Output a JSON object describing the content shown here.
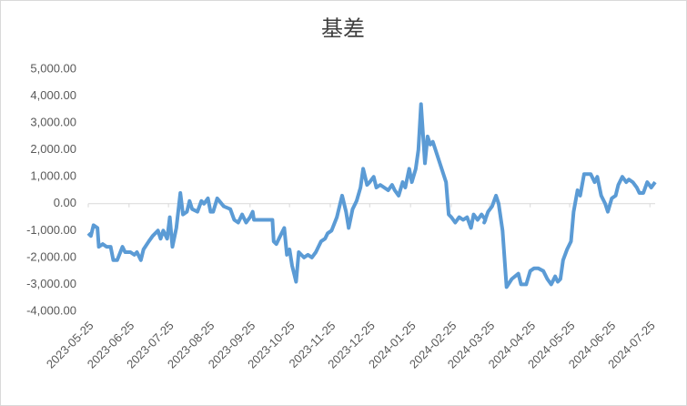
{
  "chart_data": {
    "type": "line",
    "title": "基差",
    "x": [
      "2023-05-25",
      "2023-05-27",
      "2023-05-29",
      "2023-06-01",
      "2023-06-02",
      "2023-06-05",
      "2023-06-08",
      "2023-06-11",
      "2023-06-13",
      "2023-06-16",
      "2023-06-20",
      "2023-06-22",
      "2023-06-26",
      "2023-06-29",
      "2023-07-01",
      "2023-07-04",
      "2023-07-06",
      "2023-07-10",
      "2023-07-13",
      "2023-07-17",
      "2023-07-19",
      "2023-07-21",
      "2023-07-24",
      "2023-07-26",
      "2023-07-28",
      "2023-07-31",
      "2023-08-03",
      "2023-08-05",
      "2023-08-08",
      "2023-08-10",
      "2023-08-12",
      "2023-08-16",
      "2023-08-19",
      "2023-08-21",
      "2023-08-24",
      "2023-08-26",
      "2023-08-28",
      "2023-08-31",
      "2023-09-05",
      "2023-09-10",
      "2023-09-13",
      "2023-09-16",
      "2023-09-19",
      "2023-09-22",
      "2023-09-25",
      "2023-09-27",
      "2023-09-28",
      "2023-10-03",
      "2023-10-12",
      "2023-10-13",
      "2023-10-15",
      "2023-10-18",
      "2023-10-21",
      "2023-10-23",
      "2023-10-25",
      "2023-10-27",
      "2023-10-30",
      "2023-11-01",
      "2023-11-05",
      "2023-11-08",
      "2023-11-11",
      "2023-11-14",
      "2023-11-18",
      "2023-11-21",
      "2023-11-23",
      "2023-11-26",
      "2023-11-30",
      "2023-12-02",
      "2023-12-04",
      "2023-12-07",
      "2023-12-09",
      "2023-12-12",
      "2023-12-15",
      "2023-12-18",
      "2023-12-20",
      "2023-12-23",
      "2023-12-25",
      "2023-12-28",
      "2023-12-30",
      "2024-01-02",
      "2024-01-05",
      "2024-01-08",
      "2024-01-11",
      "2024-01-13",
      "2024-01-16",
      "2024-01-19",
      "2024-01-21",
      "2024-01-24",
      "2024-01-26",
      "2024-01-29",
      "2024-01-31",
      "2024-02-02",
      "2024-02-05",
      "2024-02-07",
      "2024-02-09",
      "2024-02-11",
      "2024-02-21",
      "2024-02-23",
      "2024-02-25",
      "2024-02-28",
      "2024-03-02",
      "2024-03-05",
      "2024-03-08",
      "2024-03-11",
      "2024-03-13",
      "2024-03-16",
      "2024-03-19",
      "2024-03-22",
      "2024-03-21",
      "2024-03-24",
      "2024-03-27",
      "2024-03-30",
      "2024-04-01",
      "2024-04-04",
      "2024-04-07",
      "2024-04-11",
      "2024-04-16",
      "2024-04-18",
      "2024-04-22",
      "2024-04-25",
      "2024-04-28",
      "2024-05-01",
      "2024-05-05",
      "2024-05-08",
      "2024-05-11",
      "2024-05-14",
      "2024-05-16",
      "2024-05-18",
      "2024-05-20",
      "2024-05-23",
      "2024-05-26",
      "2024-05-28",
      "2024-05-31",
      "2024-06-02",
      "2024-06-05",
      "2024-06-10",
      "2024-06-13",
      "2024-06-15",
      "2024-06-18",
      "2024-06-21",
      "2024-06-23",
      "2024-06-26",
      "2024-06-29",
      "2024-07-01",
      "2024-07-04",
      "2024-07-07",
      "2024-07-09",
      "2024-07-12",
      "2024-07-15",
      "2024-07-17",
      "2024-07-20",
      "2024-07-23",
      "2024-07-26",
      "2024-07-29"
    ],
    "series": [
      {
        "name": "基差",
        "color": "#5b9bd5",
        "values": [
          -1100,
          -1200,
          -800,
          -900,
          -1600,
          -1500,
          -1600,
          -1600,
          -2100,
          -2100,
          -1600,
          -1800,
          -1800,
          -1900,
          -1800,
          -2100,
          -1700,
          -1400,
          -1200,
          -1000,
          -1300,
          -1000,
          -1300,
          -500,
          -1600,
          -900,
          400,
          -400,
          -300,
          100,
          -200,
          -300,
          100,
          0,
          200,
          -300,
          -300,
          200,
          -100,
          -200,
          -600,
          -700,
          -400,
          -700,
          -500,
          -300,
          -600,
          -600,
          -600,
          -1400,
          -1500,
          -1200,
          -900,
          -1900,
          -1700,
          -2300,
          -2900,
          -1800,
          -2000,
          -1900,
          -2000,
          -1800,
          -1400,
          -1300,
          -1100,
          -1000,
          -500,
          -100,
          300,
          -300,
          -900,
          -200,
          100,
          600,
          1300,
          700,
          800,
          1000,
          600,
          700,
          600,
          500,
          700,
          500,
          300,
          800,
          600,
          1300,
          800,
          1300,
          2000,
          3700,
          1500,
          2500,
          2200,
          2300,
          800,
          -400,
          -500,
          -700,
          -500,
          -600,
          -500,
          -900,
          -400,
          -600,
          -400,
          -600,
          -700,
          -300,
          -100,
          300,
          0,
          -1000,
          -3100,
          -2800,
          -2600,
          -3000,
          -3000,
          -2500,
          -2400,
          -2400,
          -2500,
          -2800,
          -3000,
          -2700,
          -2900,
          -2800,
          -2100,
          -1700,
          -1400,
          -300,
          500,
          300,
          1100,
          1100,
          800,
          1000,
          300,
          0,
          -300,
          200,
          300,
          700,
          1000,
          800,
          900,
          800,
          600,
          400,
          400,
          800,
          600,
          800
        ]
      }
    ],
    "xlim": [
      "2023-05-25",
      "2024-07-29"
    ],
    "xticks": [
      "2023-05-25",
      "2023-06-25",
      "2023-07-25",
      "2023-08-25",
      "2023-09-25",
      "2023-10-25",
      "2023-11-25",
      "2023-12-25",
      "2024-01-25",
      "2024-02-25",
      "2024-03-25",
      "2024-04-25",
      "2024-05-25",
      "2024-06-25",
      "2024-07-25"
    ],
    "ylim": [
      -4000,
      5000
    ],
    "yticks": [
      {
        "value": -4000,
        "label": "-4,000.00"
      },
      {
        "value": -3000,
        "label": "-3,000.00"
      },
      {
        "value": -2000,
        "label": "-2,000.00"
      },
      {
        "value": -1000,
        "label": "-1,000.00"
      },
      {
        "value": 0,
        "label": "0.00"
      },
      {
        "value": 1000,
        "label": "1,000.00"
      },
      {
        "value": 2000,
        "label": "2,000.00"
      },
      {
        "value": 3000,
        "label": "3,000.00"
      },
      {
        "value": 4000,
        "label": "4,000.00"
      },
      {
        "value": 5000,
        "label": "5,000.00"
      }
    ]
  }
}
